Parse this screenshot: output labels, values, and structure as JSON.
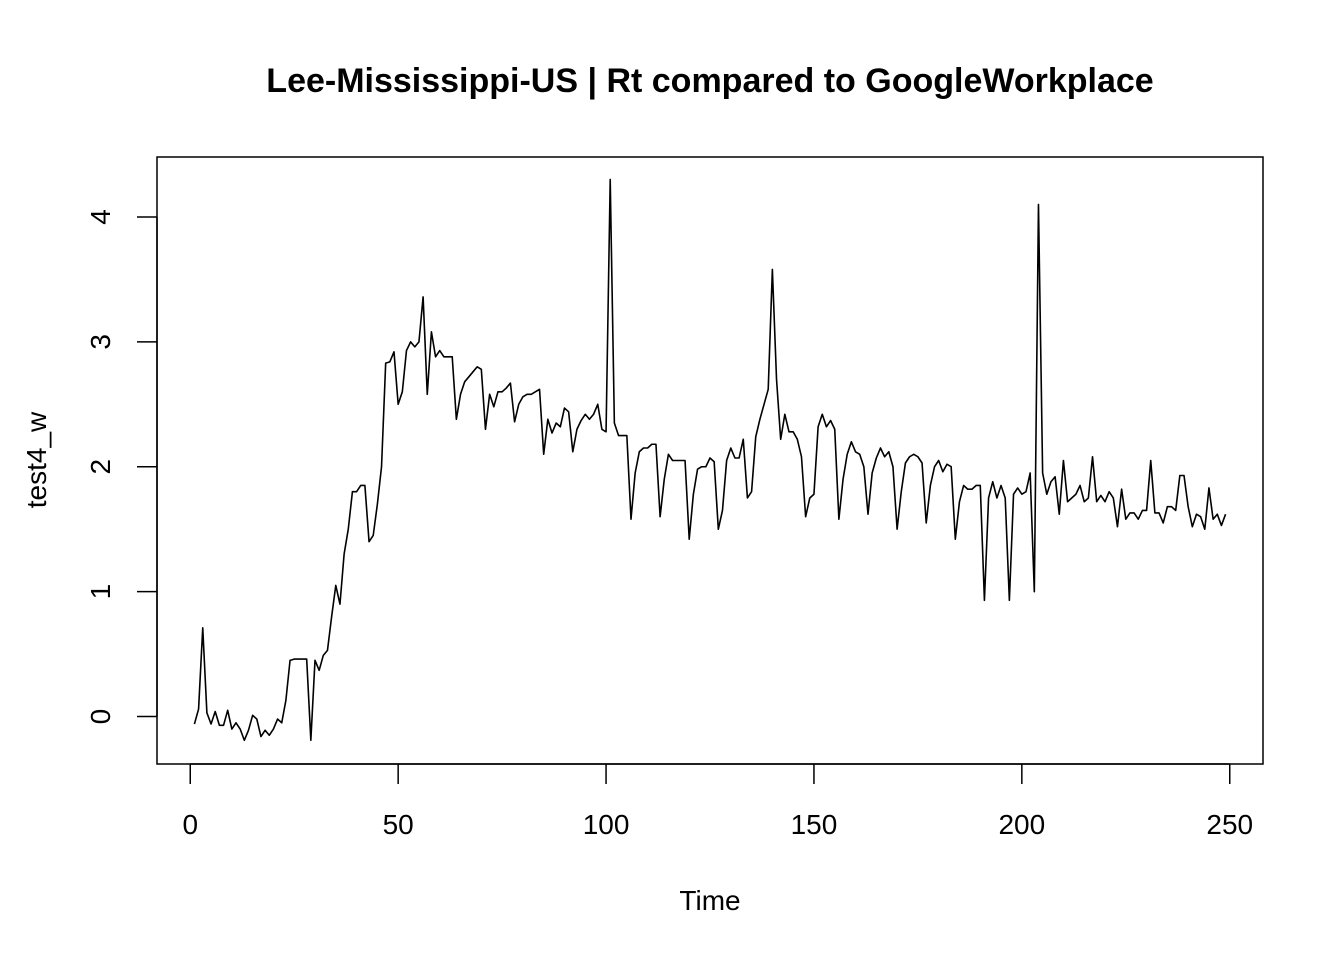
{
  "chart_data": {
    "type": "line",
    "title": "Lee-Mississippi-US | Rt compared to GoogleWorkplace",
    "xlabel": "Time",
    "ylabel": "test4_w",
    "xlim": [
      -8,
      258
    ],
    "ylim": [
      -0.38,
      4.48
    ],
    "x_ticks": [
      0,
      50,
      100,
      150,
      200,
      250
    ],
    "y_ticks": [
      0,
      1,
      2,
      3,
      4
    ],
    "x_tick_labels": [
      "0",
      "50",
      "100",
      "150",
      "200",
      "250"
    ],
    "y_tick_labels": [
      "0",
      "1",
      "2",
      "3",
      "4"
    ],
    "line_color": "#000000",
    "grid": false,
    "legend": "none",
    "series": [
      {
        "x_start": 1,
        "values": [
          -0.06,
          0.06,
          0.71,
          0.03,
          -0.06,
          0.04,
          -0.07,
          -0.07,
          0.05,
          -0.1,
          -0.05,
          -0.1,
          -0.19,
          -0.11,
          0.01,
          -0.02,
          -0.16,
          -0.11,
          -0.15,
          -0.1,
          -0.02,
          -0.05,
          0.13,
          0.45,
          0.46,
          0.46,
          0.46,
          0.46,
          -0.19,
          0.45,
          0.37,
          0.49,
          0.53,
          0.8,
          1.05,
          0.9,
          1.3,
          1.5,
          1.8,
          1.8,
          1.85,
          1.85,
          1.4,
          1.45,
          1.7,
          2.0,
          2.83,
          2.84,
          2.92,
          2.5,
          2.6,
          2.93,
          3.0,
          2.96,
          3.0,
          3.36,
          2.58,
          3.08,
          2.88,
          2.93,
          2.88,
          2.88,
          2.88,
          2.38,
          2.58,
          2.68,
          2.72,
          2.76,
          2.8,
          2.78,
          2.3,
          2.58,
          2.48,
          2.6,
          2.6,
          2.63,
          2.67,
          2.36,
          2.5,
          2.56,
          2.58,
          2.58,
          2.6,
          2.62,
          2.1,
          2.38,
          2.27,
          2.35,
          2.32,
          2.47,
          2.44,
          2.12,
          2.3,
          2.37,
          2.42,
          2.38,
          2.42,
          2.5,
          2.3,
          2.28,
          4.3,
          2.35,
          2.25,
          2.25,
          2.25,
          1.58,
          1.95,
          2.12,
          2.15,
          2.15,
          2.18,
          2.18,
          1.6,
          1.9,
          2.1,
          2.05,
          2.05,
          2.05,
          2.05,
          1.42,
          1.78,
          1.98,
          2.0,
          2.0,
          2.07,
          2.04,
          1.5,
          1.65,
          2.05,
          2.15,
          2.07,
          2.07,
          2.22,
          1.75,
          1.8,
          2.24,
          2.38,
          2.5,
          2.62,
          3.58,
          2.7,
          2.22,
          2.42,
          2.28,
          2.28,
          2.22,
          2.08,
          1.6,
          1.75,
          1.78,
          2.32,
          2.42,
          2.32,
          2.37,
          2.3,
          1.58,
          1.9,
          2.1,
          2.2,
          2.12,
          2.1,
          2.0,
          1.62,
          1.95,
          2.07,
          2.15,
          2.08,
          2.12,
          2.0,
          1.5,
          1.8,
          2.03,
          2.08,
          2.1,
          2.08,
          2.03,
          1.55,
          1.85,
          2.0,
          2.05,
          1.96,
          2.02,
          2.0,
          1.42,
          1.72,
          1.85,
          1.82,
          1.82,
          1.85,
          1.85,
          0.93,
          1.75,
          1.88,
          1.75,
          1.85,
          1.75,
          0.93,
          1.78,
          1.83,
          1.78,
          1.8,
          1.95,
          1.0,
          4.1,
          1.95,
          1.78,
          1.88,
          1.92,
          1.62,
          2.05,
          1.72,
          1.75,
          1.78,
          1.85,
          1.72,
          1.75,
          2.08,
          1.72,
          1.77,
          1.72,
          1.8,
          1.75,
          1.52,
          1.82,
          1.58,
          1.63,
          1.63,
          1.58,
          1.65,
          1.65,
          2.05,
          1.63,
          1.63,
          1.55,
          1.68,
          1.68,
          1.65,
          1.93,
          1.93,
          1.68,
          1.52,
          1.62,
          1.6,
          1.5,
          1.83,
          1.58,
          1.62,
          1.53,
          1.62
        ]
      }
    ]
  }
}
